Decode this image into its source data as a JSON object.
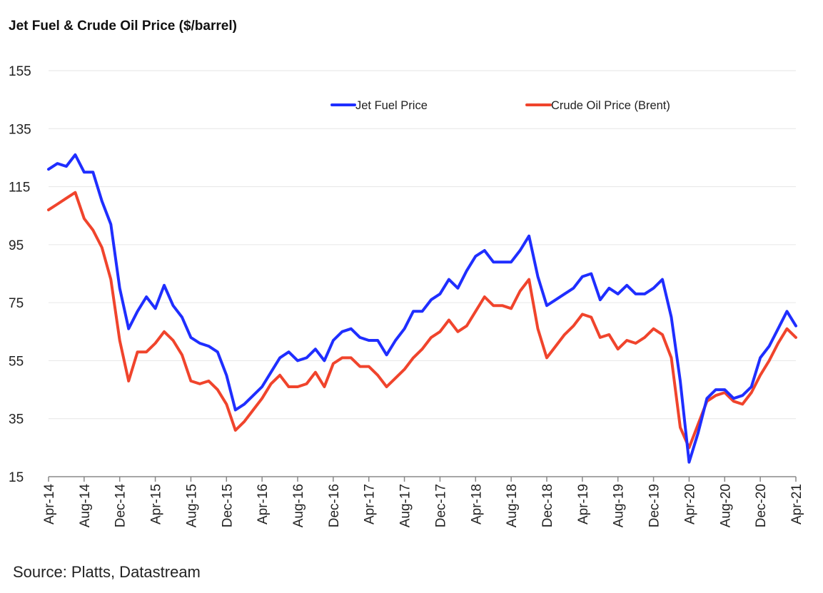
{
  "chart_data": {
    "type": "line",
    "title": "Jet Fuel & Crude Oil Price ($/barrel)",
    "source": "Source: Platts, Datastream",
    "ylim": [
      15,
      155
    ],
    "yticks": [
      155,
      135,
      115,
      95,
      75,
      55,
      35,
      15
    ],
    "xticks": [
      "Apr-14",
      "Aug-14",
      "Dec-14",
      "Apr-15",
      "Aug-15",
      "Dec-15",
      "Apr-16",
      "Aug-16",
      "Dec-16",
      "Apr-17",
      "Aug-17",
      "Dec-17",
      "Apr-18",
      "Aug-18",
      "Dec-18",
      "Apr-19",
      "Aug-19",
      "Dec-19",
      "Apr-20",
      "Aug-20",
      "Dec-20",
      "Apr-21"
    ],
    "x_start": "Apr-14",
    "x_frequency": "monthly",
    "grid": "horizontal",
    "legend_position": "top-center",
    "series": [
      {
        "name": "Jet Fuel Price",
        "color": "#1f2eff",
        "values": [
          121,
          123,
          122,
          126,
          120,
          120,
          110,
          102,
          80,
          66,
          72,
          77,
          73,
          81,
          74,
          70,
          63,
          61,
          60,
          58,
          50,
          38,
          40,
          43,
          46,
          51,
          56,
          58,
          55,
          56,
          59,
          55,
          62,
          65,
          66,
          63,
          62,
          62,
          57,
          62,
          66,
          72,
          72,
          76,
          78,
          83,
          80,
          86,
          91,
          93,
          89,
          89,
          89,
          93,
          98,
          84,
          74,
          76,
          78,
          80,
          84,
          85,
          76,
          80,
          78,
          81,
          78,
          78,
          80,
          83,
          70,
          48,
          20,
          30,
          42,
          45,
          45,
          42,
          43,
          46,
          56,
          60,
          66,
          72,
          67
        ]
      },
      {
        "name": "Crude Oil Price (Brent)",
        "color": "#f0442c",
        "values": [
          107,
          109,
          111,
          113,
          104,
          100,
          94,
          83,
          62,
          48,
          58,
          58,
          61,
          65,
          62,
          57,
          48,
          47,
          48,
          45,
          40,
          31,
          34,
          38,
          42,
          47,
          50,
          46,
          46,
          47,
          51,
          46,
          54,
          56,
          56,
          53,
          53,
          50,
          46,
          49,
          52,
          56,
          59,
          63,
          65,
          69,
          65,
          67,
          72,
          77,
          74,
          74,
          73,
          79,
          83,
          66,
          56,
          60,
          64,
          67,
          71,
          70,
          63,
          64,
          59,
          62,
          61,
          63,
          66,
          64,
          56,
          32,
          25,
          33,
          41,
          43,
          44,
          41,
          40,
          44,
          50,
          55,
          61,
          66,
          63
        ]
      }
    ]
  }
}
